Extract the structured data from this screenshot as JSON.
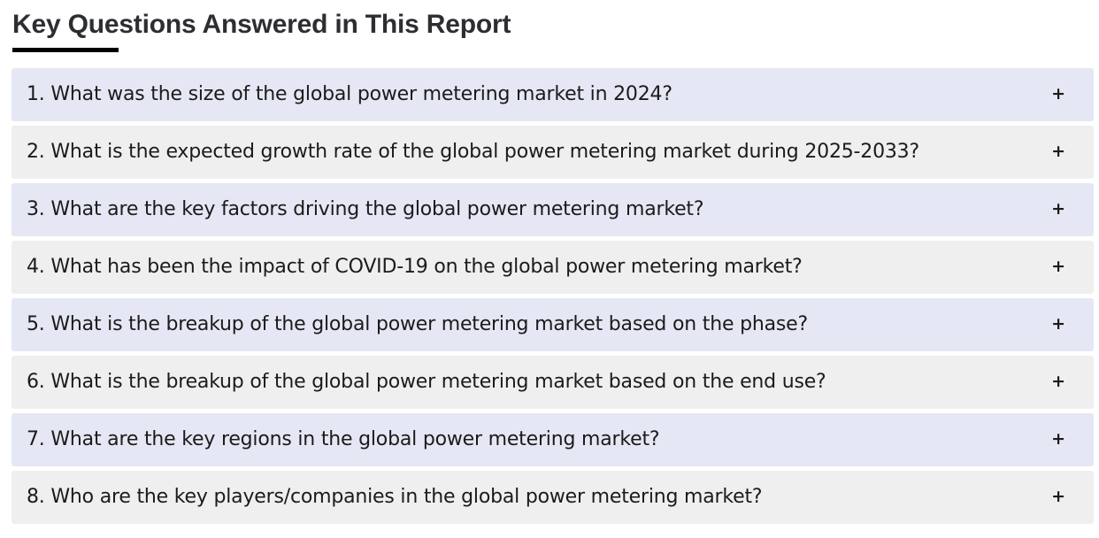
{
  "page": {
    "title": "Key Questions Answered in This Report"
  },
  "faq": {
    "expand_symbol": "+",
    "items": [
      {
        "label": "1. What was the size of the global power metering market in 2024?"
      },
      {
        "label": "2. What is the expected growth rate of the global power metering market during 2025-2033?"
      },
      {
        "label": "3. What are the key factors driving the global power metering market?"
      },
      {
        "label": "4. What has been the impact of COVID-19 on the global power metering market?"
      },
      {
        "label": "5. What is the breakup of the global power metering market based on the phase?"
      },
      {
        "label": "6. What is the breakup of the global power metering market based on the end use?"
      },
      {
        "label": "7. What are the key regions in the global power metering market?"
      },
      {
        "label": "8. Who are the key players/companies in the global power metering market?"
      }
    ]
  },
  "colors": {
    "row_lavender": "#e5e7f4",
    "row_gray": "#efefef",
    "title_text": "#2c2e31",
    "question_text": "#1b1b1b",
    "title_underline": "#000000",
    "background": "#ffffff"
  }
}
